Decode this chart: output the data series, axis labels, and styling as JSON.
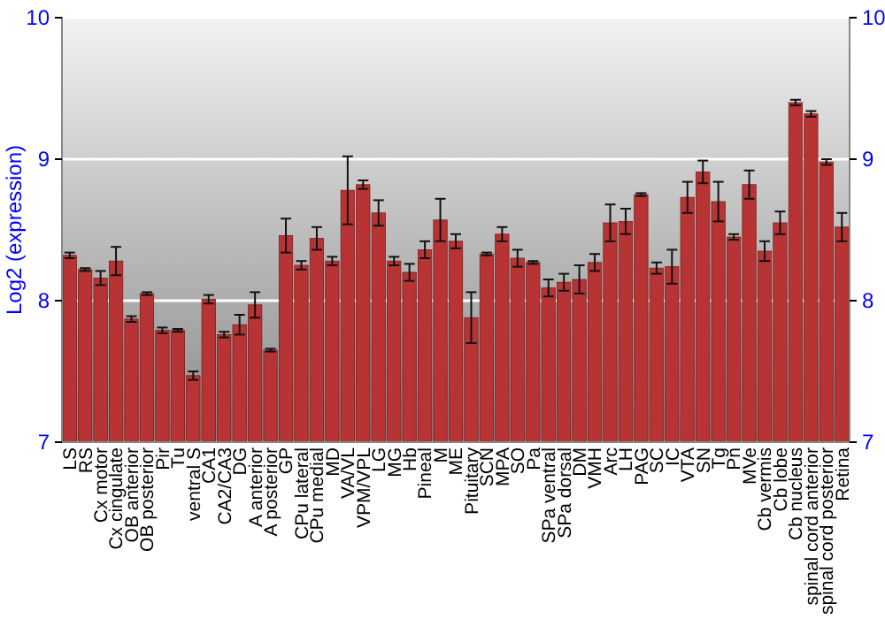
{
  "chart_data": {
    "type": "bar",
    "ylabel": "Log2 (expression)",
    "categories": [
      "LS",
      "RS",
      "Cx motor",
      "Cx cingulate",
      "OB anterior",
      "OB posterior",
      "Pir",
      "Tu",
      "ventral S",
      "CA1",
      "CA2/CA3",
      "DG",
      "A anterior",
      "A posterior",
      "GP",
      "CPu lateral",
      "CPu medial",
      "MD",
      "VA/VL",
      "VPM/VPL",
      "LG",
      "MG",
      "Hb",
      "Pineal",
      "M",
      "ME",
      "Pituitary",
      "SCN",
      "MPA",
      "SO",
      "Pa",
      "SPa ventral",
      "SPa dorsal",
      "DM",
      "VMH",
      "Arc",
      "LH",
      "PAG",
      "SC",
      "IC",
      "VTA",
      "SN",
      "Tg",
      "Pn",
      "MVe",
      "Cb vermis",
      "Cb lobe",
      "Cb nucleus",
      "spinal cord anterior",
      "spinal cord posterior",
      "Retina"
    ],
    "values": [
      8.32,
      8.22,
      8.16,
      8.28,
      7.87,
      8.05,
      7.79,
      7.79,
      7.47,
      8.01,
      7.76,
      7.83,
      7.97,
      7.65,
      8.46,
      8.25,
      8.44,
      8.28,
      8.78,
      8.82,
      8.62,
      8.28,
      8.2,
      8.36,
      8.57,
      8.42,
      7.88,
      8.33,
      8.47,
      8.3,
      8.27,
      8.09,
      8.13,
      8.15,
      8.27,
      8.55,
      8.56,
      8.75,
      8.23,
      8.24,
      8.73,
      8.91,
      8.7,
      8.45,
      8.82,
      8.35,
      8.55,
      9.4,
      9.32,
      8.98,
      8.52
    ],
    "errors": [
      0.02,
      0.01,
      0.05,
      0.1,
      0.02,
      0.01,
      0.02,
      0.01,
      0.03,
      0.03,
      0.02,
      0.07,
      0.09,
      0.01,
      0.12,
      0.03,
      0.08,
      0.03,
      0.24,
      0.03,
      0.09,
      0.03,
      0.06,
      0.06,
      0.15,
      0.05,
      0.18,
      0.01,
      0.05,
      0.06,
      0.01,
      0.06,
      0.06,
      0.1,
      0.06,
      0.13,
      0.09,
      0.01,
      0.04,
      0.12,
      0.11,
      0.08,
      0.14,
      0.02,
      0.1,
      0.07,
      0.08,
      0.02,
      0.02,
      0.02,
      0.1
    ],
    "color": "#b83434",
    "ylim": [
      7,
      10
    ],
    "yticks": [
      7,
      8,
      9,
      10
    ],
    "y2lim": [
      7,
      10
    ],
    "y2ticks": [
      7,
      8,
      9,
      10
    ],
    "grid": "y"
  }
}
